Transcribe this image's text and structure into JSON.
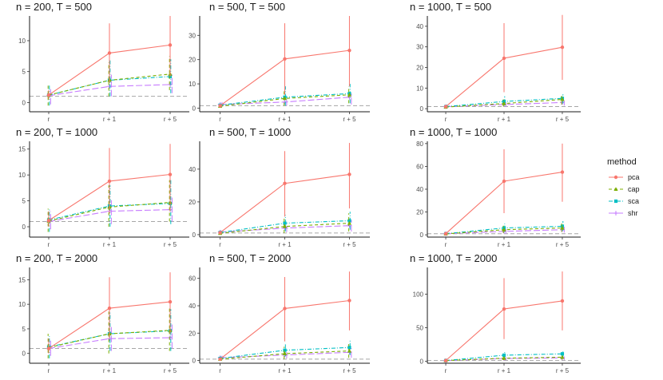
{
  "chart_data": {
    "type": "line",
    "x_categories": [
      "r",
      "r + 1",
      "r + 5"
    ],
    "reference_line_y": 1,
    "legend": {
      "title": "method",
      "items": [
        {
          "name": "pca",
          "color": "#F8766D",
          "dash": "solid",
          "marker": "circle"
        },
        {
          "name": "cap",
          "color": "#7CAE00",
          "dash": "dashed",
          "marker": "triangle"
        },
        {
          "name": "sca",
          "color": "#00BFC4",
          "dash": "dashdot",
          "marker": "square"
        },
        {
          "name": "shr",
          "color": "#C77CFF",
          "dash": "longdash",
          "marker": "plus"
        }
      ]
    },
    "panels": [
      {
        "title": "n = 200, T = 500",
        "ylim": [
          -1.5,
          14
        ],
        "yticks": [
          0,
          5,
          10
        ],
        "series": {
          "pca": [
            1.2,
            8.0,
            9.3
          ],
          "cap": [
            1.2,
            3.6,
            4.6
          ],
          "sca": [
            1.2,
            3.6,
            4.2
          ],
          "shr": [
            1.1,
            2.6,
            2.9
          ]
        },
        "errors": {
          "pca": [
            [
              0.5,
              2.0
            ],
            [
              3.2,
              12.8
            ],
            [
              4.2,
              14.0
            ]
          ],
          "cap": [
            [
              -0.5,
              3.0
            ],
            [
              1.0,
              6.5
            ],
            [
              2.0,
              7.5
            ]
          ],
          "sca": [
            [
              -0.5,
              2.8
            ],
            [
              1.0,
              6.8
            ],
            [
              1.5,
              7.0
            ]
          ],
          "shr": [
            [
              -0.3,
              2.5
            ],
            [
              1.0,
              4.5
            ],
            [
              1.5,
              4.5
            ]
          ]
        }
      },
      {
        "title": "n = 500, T = 500",
        "ylim": [
          -1.5,
          38
        ],
        "yticks": [
          0,
          10,
          20,
          30
        ],
        "series": {
          "pca": [
            1.0,
            20.3,
            23.8
          ],
          "cap": [
            0.8,
            4.0,
            5.5
          ],
          "sca": [
            1.2,
            4.5,
            6.0
          ],
          "shr": [
            1.5,
            2.5,
            4.5
          ]
        },
        "errors": {
          "pca": [
            [
              0.3,
              1.5
            ],
            [
              5.5,
              35.0
            ],
            [
              9.0,
              38.0
            ]
          ],
          "cap": [
            [
              0.2,
              1.8
            ],
            [
              1.0,
              7.0
            ],
            [
              2.0,
              9.0
            ]
          ],
          "sca": [
            [
              0.2,
              2.0
            ],
            [
              1.0,
              9.0
            ],
            [
              2.0,
              10.0
            ]
          ],
          "shr": [
            [
              0.5,
              2.5
            ],
            [
              1.0,
              4.5
            ],
            [
              1.5,
              6.0
            ]
          ]
        }
      },
      {
        "title": "n = 1000, T = 500",
        "ylim": [
          -1.5,
          45
        ],
        "yticks": [
          0,
          10,
          20,
          30,
          40
        ],
        "series": {
          "pca": [
            1.0,
            24.5,
            29.8
          ],
          "cap": [
            0.8,
            2.5,
            4.5
          ],
          "sca": [
            1.0,
            3.5,
            5.0
          ],
          "shr": [
            1.0,
            2.0,
            3.0
          ]
        },
        "errors": {
          "pca": [
            [
              0.3,
              1.5
            ],
            [
              8.0,
              41.5
            ],
            [
              14.0,
              45.5
            ]
          ],
          "cap": [
            [
              0.2,
              1.5
            ],
            [
              1.0,
              4.5
            ],
            [
              2.0,
              7.0
            ]
          ],
          "sca": [
            [
              0.2,
              2.0
            ],
            [
              1.5,
              6.0
            ],
            [
              2.5,
              7.0
            ]
          ],
          "shr": [
            [
              0.5,
              1.5
            ],
            [
              0.8,
              3.0
            ],
            [
              1.5,
              4.0
            ]
          ]
        }
      },
      {
        "title": "n = 200, T = 1000",
        "ylim": [
          -2,
          16.5
        ],
        "yticks": [
          0,
          5,
          10,
          15
        ],
        "series": {
          "pca": [
            1.2,
            8.8,
            10.1
          ],
          "cap": [
            1.1,
            3.8,
            4.7
          ],
          "sca": [
            1.3,
            4.0,
            4.5
          ],
          "shr": [
            1.0,
            3.0,
            3.3
          ]
        },
        "errors": {
          "pca": [
            [
              0.0,
              3.0
            ],
            [
              2.5,
              15.2
            ],
            [
              3.0,
              16.0
            ]
          ],
          "cap": [
            [
              -1.0,
              3.5
            ],
            [
              0.0,
              8.0
            ],
            [
              1.0,
              9.0
            ]
          ],
          "sca": [
            [
              -1.0,
              3.5
            ],
            [
              0.0,
              8.0
            ],
            [
              0.5,
              9.0
            ]
          ],
          "shr": [
            [
              -0.5,
              3.0
            ],
            [
              0.5,
              5.5
            ],
            [
              1.0,
              6.0
            ]
          ]
        }
      },
      {
        "title": "n = 500, T = 1000",
        "ylim": [
          -1.5,
          57
        ],
        "yticks": [
          0,
          20,
          40
        ],
        "series": {
          "pca": [
            1.2,
            31.3,
            36.8
          ],
          "cap": [
            0.8,
            5.0,
            7.0
          ],
          "sca": [
            1.3,
            7.0,
            8.5
          ],
          "shr": [
            1.5,
            4.0,
            5.5
          ]
        },
        "errors": {
          "pca": [
            [
              0.5,
              2.0
            ],
            [
              11.0,
              51.0
            ],
            [
              16.0,
              56.0
            ]
          ],
          "cap": [
            [
              0.2,
              2.0
            ],
            [
              1.0,
              10.0
            ],
            [
              2.0,
              13.0
            ]
          ],
          "sca": [
            [
              0.2,
              2.5
            ],
            [
              2.0,
              12.0
            ],
            [
              3.0,
              14.0
            ]
          ],
          "shr": [
            [
              0.5,
              2.5
            ],
            [
              1.5,
              7.0
            ],
            [
              2.0,
              9.0
            ]
          ]
        }
      },
      {
        "title": "n = 1000, T = 1000",
        "ylim": [
          -2,
          82
        ],
        "yticks": [
          0,
          20,
          40,
          60,
          80
        ],
        "series": {
          "pca": [
            1.0,
            47.0,
            55.0
          ],
          "cap": [
            0.8,
            4.5,
            6.0
          ],
          "sca": [
            1.0,
            6.0,
            7.5
          ],
          "shr": [
            1.0,
            3.0,
            4.5
          ]
        },
        "errors": {
          "pca": [
            [
              0.3,
              2.0
            ],
            [
              19.0,
              75.0
            ],
            [
              29.0,
              80.0
            ]
          ],
          "cap": [
            [
              0.2,
              1.8
            ],
            [
              1.5,
              8.0
            ],
            [
              2.5,
              10.0
            ]
          ],
          "sca": [
            [
              0.2,
              2.5
            ],
            [
              2.5,
              10.0
            ],
            [
              3.5,
              12.0
            ]
          ],
          "shr": [
            [
              0.5,
              1.8
            ],
            [
              1.0,
              5.0
            ],
            [
              2.0,
              7.0
            ]
          ]
        }
      },
      {
        "title": "n = 200, T = 2000",
        "ylim": [
          -2,
          17.5
        ],
        "yticks": [
          0,
          5,
          10,
          15
        ],
        "series": {
          "pca": [
            1.0,
            9.2,
            10.5
          ],
          "cap": [
            1.2,
            4.0,
            4.7
          ],
          "sca": [
            1.3,
            4.0,
            4.6
          ],
          "shr": [
            1.0,
            3.0,
            3.2
          ]
        },
        "errors": {
          "pca": [
            [
              0.0,
              3.0
            ],
            [
              3.0,
              15.5
            ],
            [
              4.0,
              16.5
            ]
          ],
          "cap": [
            [
              -1.0,
              4.0
            ],
            [
              0.0,
              8.5
            ],
            [
              0.5,
              9.5
            ]
          ],
          "sca": [
            [
              -1.0,
              3.5
            ],
            [
              0.5,
              8.5
            ],
            [
              0.5,
              9.0
            ]
          ],
          "shr": [
            [
              -0.5,
              3.0
            ],
            [
              0.5,
              5.5
            ],
            [
              1.0,
              6.0
            ]
          ]
        }
      },
      {
        "title": "n = 500, T = 2000",
        "ylim": [
          -2,
          68
        ],
        "yticks": [
          0,
          20,
          40,
          60
        ],
        "series": {
          "pca": [
            1.0,
            38.0,
            43.8
          ],
          "cap": [
            1.0,
            5.0,
            7.0
          ],
          "sca": [
            1.5,
            7.5,
            9.5
          ],
          "shr": [
            2.0,
            4.0,
            6.0
          ]
        },
        "errors": {
          "pca": [
            [
              0.3,
              2.0
            ],
            [
              14.0,
              61.0
            ],
            [
              22.0,
              65.0
            ]
          ],
          "cap": [
            [
              0.2,
              2.0
            ],
            [
              1.0,
              10.0
            ],
            [
              2.0,
              12.0
            ]
          ],
          "sca": [
            [
              0.3,
              3.0
            ],
            [
              3.0,
              12.5
            ],
            [
              4.0,
              15.0
            ]
          ],
          "shr": [
            [
              0.5,
              3.5
            ],
            [
              1.5,
              7.0
            ],
            [
              2.0,
              9.0
            ]
          ]
        }
      },
      {
        "title": "n = 1000, T = 2000",
        "ylim": [
          -3,
          140
        ],
        "yticks": [
          0,
          50,
          100
        ],
        "series": {
          "pca": [
            1.0,
            78.0,
            90.0
          ],
          "cap": [
            1.0,
            4.5,
            6.0
          ],
          "sca": [
            1.0,
            9.0,
            11.0
          ],
          "shr": [
            1.0,
            4.0,
            5.0
          ]
        },
        "errors": {
          "pca": [
            [
              0.3,
              3.0
            ],
            [
              33.0,
              124.0
            ],
            [
              46.0,
              134.0
            ]
          ],
          "cap": [
            [
              0.3,
              2.0
            ],
            [
              1.5,
              8.0
            ],
            [
              2.5,
              10.0
            ]
          ],
          "sca": [
            [
              0.3,
              3.0
            ],
            [
              4.0,
              14.0
            ],
            [
              5.0,
              16.0
            ]
          ],
          "shr": [
            [
              0.5,
              2.0
            ],
            [
              1.5,
              6.0
            ],
            [
              2.0,
              7.0
            ]
          ]
        }
      }
    ]
  }
}
